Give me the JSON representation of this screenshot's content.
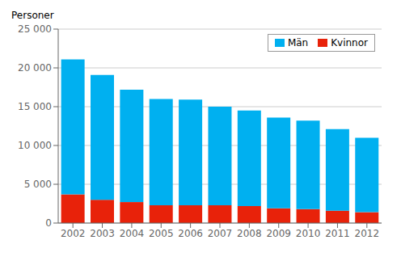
{
  "chart_data": {
    "type": "bar",
    "ylabel": "Personer",
    "categories": [
      "2002",
      "2003",
      "2004",
      "2005",
      "2006",
      "2007",
      "2008",
      "2009",
      "2010",
      "2011",
      "2012"
    ],
    "series": [
      {
        "name": "Kvinnor",
        "color": "#e8220a",
        "values": [
          3700,
          3000,
          2700,
          2300,
          2300,
          2300,
          2200,
          1900,
          1800,
          1600,
          1400
        ]
      },
      {
        "name": "Män",
        "color": "#00b0f0",
        "values": [
          17400,
          16100,
          14500,
          13700,
          13600,
          12700,
          12300,
          11700,
          11400,
          10500,
          9600
        ]
      }
    ],
    "stacked": true,
    "ylim": [
      0,
      25000
    ],
    "yticks": [
      0,
      {
        "value": 5000,
        "label": "5 000"
      },
      {
        "value": 10000,
        "label": "10 000"
      },
      {
        "value": 15000,
        "label": "15 000"
      },
      {
        "value": 20000,
        "label": "20 000"
      },
      {
        "value": 25000,
        "label": "25 000"
      }
    ],
    "grid": true,
    "legend": "upper right"
  }
}
